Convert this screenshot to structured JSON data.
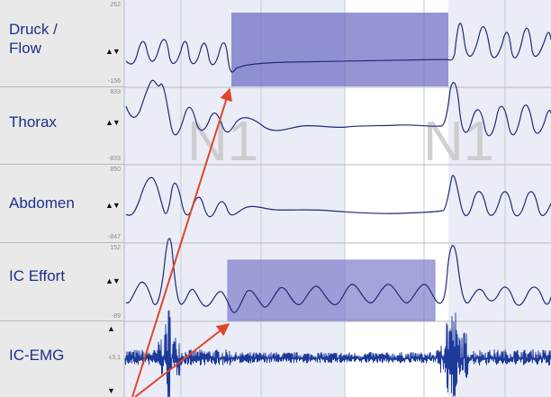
{
  "channels": [
    {
      "name_line1": "Druck /",
      "name_line2": "Flow",
      "scale_max": "262",
      "scale_min": "-156",
      "arrows": "▲▼"
    },
    {
      "name_line1": "Thorax",
      "name_line2": "",
      "scale_max": "833",
      "scale_min": "-833",
      "arrows": "▲▼"
    },
    {
      "name_line1": "Abdomen",
      "name_line2": "",
      "scale_max": "850",
      "scale_min": "-847",
      "arrows": "▲▼"
    },
    {
      "name_line1": "IC Effort",
      "name_line2": "",
      "scale_max": "152",
      "scale_min": "-89",
      "arrows": "▲▼"
    },
    {
      "name_line1": "IC-EMG",
      "name_line2": "",
      "scale_mid": "±3,1",
      "arrow_up": "▲",
      "arrow_down": "▼"
    }
  ],
  "watermarks": [
    "N1",
    "N1"
  ],
  "colors": {
    "trace": "#1f2a78",
    "emg": "#1d3a9a",
    "highlight": "#6c6cc4",
    "arrow": "#e0442e",
    "label_bg": "#e9e9e9",
    "label_text": "#1e2f8c"
  }
}
